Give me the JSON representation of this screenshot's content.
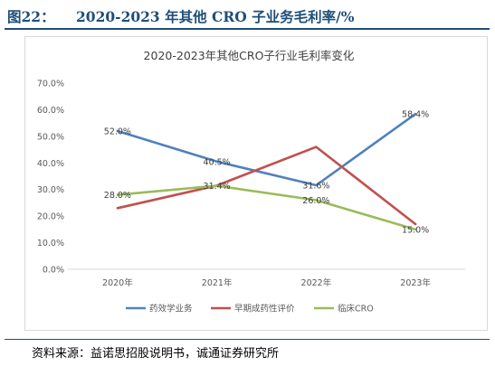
{
  "figure": {
    "number": "图22：",
    "title": "2020-2023 年其他 CRO 子业务毛利率/%",
    "source": "资料来源：益诺思招股说明书，诚通证券研究所"
  },
  "chart_data": {
    "type": "line",
    "title": "2020-2023年其他CRO子行业毛利率变化",
    "categories": [
      "2020年",
      "2021年",
      "2022年",
      "2023年"
    ],
    "ylim": [
      0,
      70
    ],
    "yticks": [
      "0.0%",
      "10.0%",
      "20.0%",
      "30.0%",
      "40.0%",
      "50.0%",
      "60.0%",
      "70.0%"
    ],
    "ytick_values": [
      0,
      10,
      20,
      30,
      40,
      50,
      60,
      70
    ],
    "grid": false,
    "legend_position": "bottom",
    "series": [
      {
        "name": "药效学业务",
        "color": "#4f81bd",
        "values": [
          52.0,
          40.5,
          31.6,
          58.4
        ],
        "labels": [
          "52.0%",
          "40.5%",
          "31.6%",
          "58.4%"
        ]
      },
      {
        "name": "早期成药性评价",
        "color": "#c0504d",
        "values": [
          23.0,
          31.5,
          46.0,
          17.0
        ],
        "labels": []
      },
      {
        "name": "临床CRO",
        "color": "#9bbb59",
        "values": [
          28.0,
          31.4,
          26.0,
          15.0
        ],
        "labels": [
          "28.0%",
          "31.4%",
          "26.0%",
          "15.0%"
        ]
      }
    ]
  }
}
